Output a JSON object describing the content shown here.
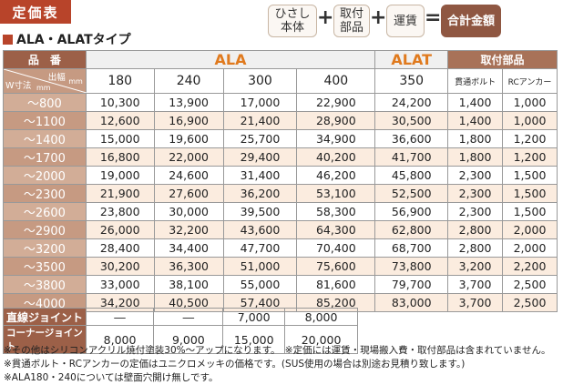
{
  "header": {
    "badge": "定価表",
    "subtitle": "ALA・ALATタイプ",
    "formula": {
      "box1": [
        "ひさし",
        "本体"
      ],
      "plus1": "+",
      "box2": [
        "取付",
        "部品"
      ],
      "plus2": "+",
      "box3": "運賃",
      "equals": "=",
      "total": "合計金額"
    }
  },
  "table": {
    "label_hinban": "品　番",
    "label_dehaba": "出幅",
    "label_mm1": "mm",
    "label_wsunpo": "W寸法",
    "label_mm2": "mm",
    "group_ala": "ALA",
    "group_alat": "ALAT",
    "group_parts": "取付部品",
    "columns": [
      "180",
      "240",
      "300",
      "400",
      "350",
      "貫通ボルト",
      "RCアンカー"
    ],
    "rows": [
      {
        "w": "～800",
        "v": [
          "10,300",
          "13,900",
          "17,000",
          "22,900",
          "24,200",
          "1,400",
          "1,000"
        ]
      },
      {
        "w": "～1100",
        "v": [
          "12,600",
          "16,900",
          "21,400",
          "28,900",
          "30,500",
          "1,400",
          "1,000"
        ]
      },
      {
        "w": "～1400",
        "v": [
          "15,000",
          "19,600",
          "25,700",
          "34,900",
          "36,600",
          "1,800",
          "1,200"
        ]
      },
      {
        "w": "～1700",
        "v": [
          "16,800",
          "22,000",
          "29,400",
          "40,200",
          "41,700",
          "1,800",
          "1,200"
        ]
      },
      {
        "w": "～2000",
        "v": [
          "19,000",
          "24,600",
          "31,400",
          "46,200",
          "45,800",
          "2,300",
          "1,500"
        ]
      },
      {
        "w": "～2300",
        "v": [
          "21,900",
          "27,600",
          "36,200",
          "53,100",
          "52,500",
          "2,300",
          "1,500"
        ]
      },
      {
        "w": "～2600",
        "v": [
          "23,800",
          "30,000",
          "39,500",
          "58,300",
          "56,900",
          "2,300",
          "1,500"
        ]
      },
      {
        "w": "～2900",
        "v": [
          "26,000",
          "32,200",
          "43,600",
          "64,300",
          "62,800",
          "2,800",
          "2,000"
        ]
      },
      {
        "w": "～3200",
        "v": [
          "28,400",
          "34,400",
          "47,700",
          "70,400",
          "68,700",
          "2,800",
          "2,000"
        ]
      },
      {
        "w": "～3500",
        "v": [
          "30,200",
          "36,300",
          "51,000",
          "75,600",
          "73,800",
          "3,200",
          "2,200"
        ]
      },
      {
        "w": "～3800",
        "v": [
          "33,000",
          "38,100",
          "55,000",
          "81,600",
          "79,700",
          "3,700",
          "2,500"
        ]
      },
      {
        "w": "～4000",
        "v": [
          "34,200",
          "40,500",
          "57,400",
          "85,200",
          "83,000",
          "3,700",
          "2,500"
        ]
      }
    ]
  },
  "joints": [
    {
      "label": "直線ジョイント",
      "v": [
        "―",
        "―",
        "7,000",
        "8,000"
      ]
    },
    {
      "label": "コーナージョイント",
      "v": [
        "8,000",
        "9,000",
        "15,000",
        "20,000"
      ]
    }
  ],
  "notes": [
    "※その他はシリコンアクリル焼付塗装30%～アップになります。　※定価には運賃・現場搬入費・取付部品は含まれていません。",
    "※貫通ボルト・RCアンカーの定価はユニクロメッキの価格です。(SUS使用の場合は別途お見積り致します。)",
    "※ALA180・240については壁面穴開け無しです。"
  ]
}
